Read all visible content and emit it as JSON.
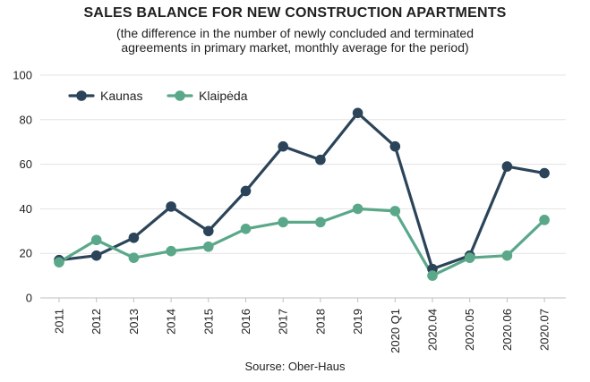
{
  "chart_data": {
    "type": "line",
    "title": "SALES BALANCE FOR NEW CONSTRUCTION APARTMENTS",
    "subtitle_lines": [
      "(the difference in the number of newly concluded and terminated",
      "agreements in primary market, monthly average for the period)"
    ],
    "source": "Sourse: Ober-Haus",
    "categories": [
      "2011",
      "2012",
      "2013",
      "2014",
      "2015",
      "2016",
      "2017",
      "2018",
      "2019",
      "2020 Q1",
      "2020.04",
      "2020.05",
      "2020.06",
      "2020.07"
    ],
    "y_ticks": [
      "0",
      "20",
      "40",
      "60",
      "80",
      "100"
    ],
    "ylim": [
      0,
      100
    ],
    "grid": true,
    "legend_position": "top-left",
    "series": [
      {
        "name": "Kaunas",
        "color": "#2b4459",
        "values": [
          17,
          19,
          27,
          41,
          30,
          48,
          68,
          62,
          83,
          68,
          13,
          19,
          59,
          56
        ]
      },
      {
        "name": "Klaipėda",
        "color": "#5aa889",
        "values": [
          16,
          26,
          18,
          21,
          23,
          31,
          34,
          34,
          40,
          39,
          10,
          18,
          19,
          35
        ]
      }
    ]
  }
}
